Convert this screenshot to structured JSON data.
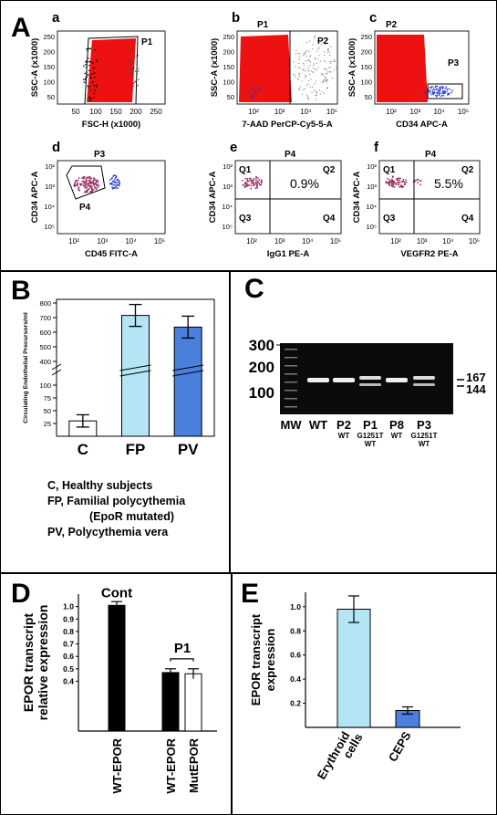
{
  "panels": {
    "A": "A",
    "B": "B",
    "C": "C",
    "D": "D",
    "E": "E"
  },
  "flow": [
    {
      "letter": "a",
      "xlabel": "FSC-H (x1000)",
      "ylabel": "SSC-A (x1000)",
      "xticks": [
        "50",
        "100",
        "150",
        "200",
        "250"
      ],
      "yticks": [
        "50",
        "100",
        "150",
        "200",
        "250"
      ],
      "gates": [
        "P1"
      ]
    },
    {
      "letter": "b",
      "xlabel": "7-AAD PerCP-Cy5-5-A",
      "ylabel": "SSC-A (x1000)",
      "xticks": [
        "10²",
        "10³",
        "10⁴",
        "10⁵"
      ],
      "yticks": [
        "50",
        "100",
        "150",
        "200",
        "250"
      ],
      "gates": [
        "P1",
        "P2"
      ]
    },
    {
      "letter": "c",
      "xlabel": "CD34 APC-A",
      "ylabel": "SSC-A (x1000)",
      "xticks": [
        "10²",
        "10³",
        "10⁴",
        "10⁵"
      ],
      "yticks": [
        "50",
        "100",
        "150",
        "200",
        "250"
      ],
      "gates": [
        "P2",
        "P3"
      ]
    },
    {
      "letter": "d",
      "xlabel": "CD45 FITC-A",
      "ylabel": "CD34 APC-A",
      "xticks": [
        "10²",
        "10³",
        "10⁴",
        "10⁵"
      ],
      "yticks": [
        "10⁵",
        "10⁴",
        "10³",
        "10²"
      ],
      "gates": [
        "P3",
        "P4"
      ]
    },
    {
      "letter": "e",
      "xlabel": "IgG1 PE-A",
      "ylabel": "CD34 APC-A",
      "xticks": [
        "10²",
        "10³",
        "10⁴",
        "10⁵"
      ],
      "yticks": [
        "10⁵",
        "10⁴",
        "10³",
        "10²"
      ],
      "gates": [
        "P4",
        "Q1",
        "Q2",
        "Q3",
        "Q4"
      ],
      "percent": "0.9%"
    },
    {
      "letter": "f",
      "xlabel": "VEGFR2 PE-A",
      "ylabel": "CD34 APC-A",
      "xticks": [
        "10²",
        "10³",
        "10⁴",
        "10⁵"
      ],
      "yticks": [
        "10⁵",
        "10⁴",
        "10³",
        "10²"
      ],
      "gates": [
        "P4",
        "Q1",
        "Q2",
        "Q3",
        "Q4"
      ],
      "percent": "5.5%"
    }
  ],
  "legendB": {
    "c": "C, Healthy subjects",
    "fp": "FP, Familial polycythemia",
    "fp2": "(EpoR mutated)",
    "pv": "PV, Polycythemia vera"
  },
  "gel": {
    "mw_labels": [
      "300",
      "200",
      "100"
    ],
    "band_labels": [
      "167",
      "144"
    ],
    "lanes": [
      {
        "name": "MW",
        "sub": ""
      },
      {
        "name": "WT",
        "sub": ""
      },
      {
        "name": "P2",
        "sub": "WT"
      },
      {
        "name": "P1",
        "sub": "G1251T WT"
      },
      {
        "name": "P8",
        "sub": "WT"
      },
      {
        "name": "P3",
        "sub": "G1251T WT"
      }
    ]
  },
  "chart_data": [
    {
      "panel": "B",
      "type": "bar",
      "ylabel": "Circulating Endothelial Precursors/ml",
      "yticks": [
        25,
        50,
        75,
        100,
        400,
        500,
        600,
        700,
        800
      ],
      "categories": [
        "C",
        "FP",
        "PV"
      ],
      "values": [
        30,
        715,
        635
      ],
      "errors": [
        12,
        75,
        75
      ],
      "colors": [
        "#ffffff",
        "#b3e5f5",
        "#4a7fdc"
      ]
    },
    {
      "panel": "D",
      "type": "bar",
      "ylabel": "EPOR transcript relative expression",
      "ylim": [
        0,
        1.1
      ],
      "yticks": [
        "0.4",
        "0.5",
        "0.6",
        "0.7",
        "0.8",
        "0.9",
        "1.0"
      ],
      "categories": [
        "WT-EPOR",
        "WT-EPOR",
        "MutEPOR"
      ],
      "values": [
        1.01,
        0.47,
        0.46
      ],
      "errors": [
        0.03,
        0.03,
        0.04
      ],
      "colors": [
        "#000000",
        "#000000",
        "#ffffff"
      ],
      "annotations": [
        "Cont",
        "P1"
      ]
    },
    {
      "panel": "E",
      "type": "bar",
      "ylabel": "EPOR transcript expression",
      "ylim": [
        0,
        1.12
      ],
      "yticks": [
        "0.2",
        "0.4",
        "0.6",
        "0.8",
        "1.0"
      ],
      "categories": [
        "Erythroid cells",
        "CEPS"
      ],
      "values": [
        0.98,
        0.14
      ],
      "errors": [
        0.11,
        0.03
      ],
      "colors": [
        "#b3e5f5",
        "#4a7fdc"
      ]
    }
  ]
}
